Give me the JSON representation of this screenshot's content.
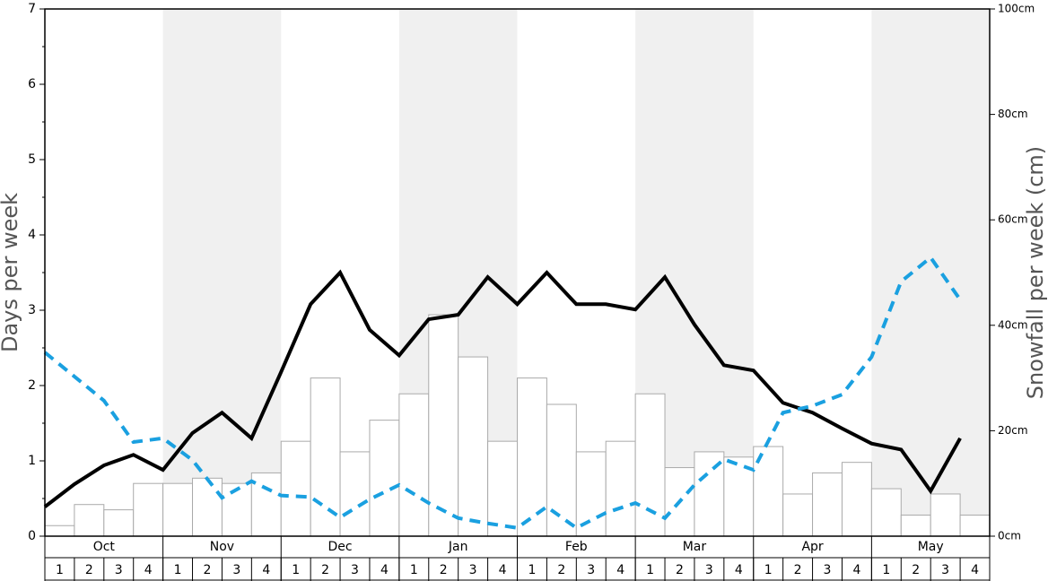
{
  "chart_data": {
    "type": "bar",
    "ylabel": "Days per week",
    "y2label": "Snowfall per week (cm)",
    "months": [
      "Oct",
      "Nov",
      "Dec",
      "Jan",
      "Feb",
      "Mar",
      "Apr",
      "May"
    ],
    "categories": [
      "1",
      "2",
      "3",
      "4",
      "1",
      "2",
      "3",
      "4",
      "1",
      "2",
      "3",
      "4",
      "1",
      "2",
      "3",
      "4",
      "1",
      "2",
      "3",
      "4",
      "1",
      "2",
      "3",
      "4",
      "1",
      "2",
      "3",
      "4",
      "1",
      "2",
      "3",
      "4"
    ],
    "ylim": [
      0,
      7
    ],
    "yticks": [
      0,
      1,
      2,
      3,
      4,
      5,
      6,
      7
    ],
    "y2lim": [
      0,
      100
    ],
    "y2ticks": [
      {
        "value": 0,
        "label": "0cm"
      },
      {
        "value": 20,
        "label": "20cm"
      },
      {
        "value": 40,
        "label": "40cm"
      },
      {
        "value": 60,
        "label": "60cm"
      },
      {
        "value": 80,
        "label": "80cm"
      },
      {
        "value": 100,
        "label": "100cm"
      }
    ],
    "series": [
      {
        "type": "bar",
        "axis": "y2",
        "color": "#ffffff",
        "values": [
          2,
          6,
          5,
          10,
          10,
          11,
          10,
          12,
          18,
          30,
          16,
          22,
          27,
          42,
          34,
          18,
          30,
          25,
          16,
          18,
          27,
          13,
          16,
          15,
          17,
          8,
          12,
          14,
          9,
          4,
          8,
          4
        ]
      },
      {
        "type": "line",
        "color": "#000000",
        "values": [
          0.39,
          0.69,
          0.94,
          1.08,
          0.88,
          1.37,
          1.64,
          1.3,
          2.18,
          3.08,
          3.5,
          2.74,
          2.4,
          2.88,
          2.94,
          3.44,
          3.08,
          3.5,
          3.08,
          3.08,
          3.01,
          3.44,
          2.81,
          2.27,
          2.2,
          1.77,
          1.64,
          1.43,
          1.23,
          1.15,
          0.6,
          1.3
        ]
      },
      {
        "type": "line",
        "dashed": true,
        "color": "#1aa0e0",
        "values": [
          2.44,
          2.12,
          1.8,
          1.25,
          1.3,
          1.01,
          0.51,
          0.73,
          0.54,
          0.52,
          0.25,
          0.49,
          0.68,
          0.44,
          0.24,
          0.17,
          0.11,
          0.39,
          0.11,
          0.31,
          0.44,
          0.24,
          0.68,
          1.02,
          0.88,
          1.64,
          1.73,
          1.88,
          2.38,
          3.38,
          3.7,
          3.14
        ]
      }
    ]
  }
}
